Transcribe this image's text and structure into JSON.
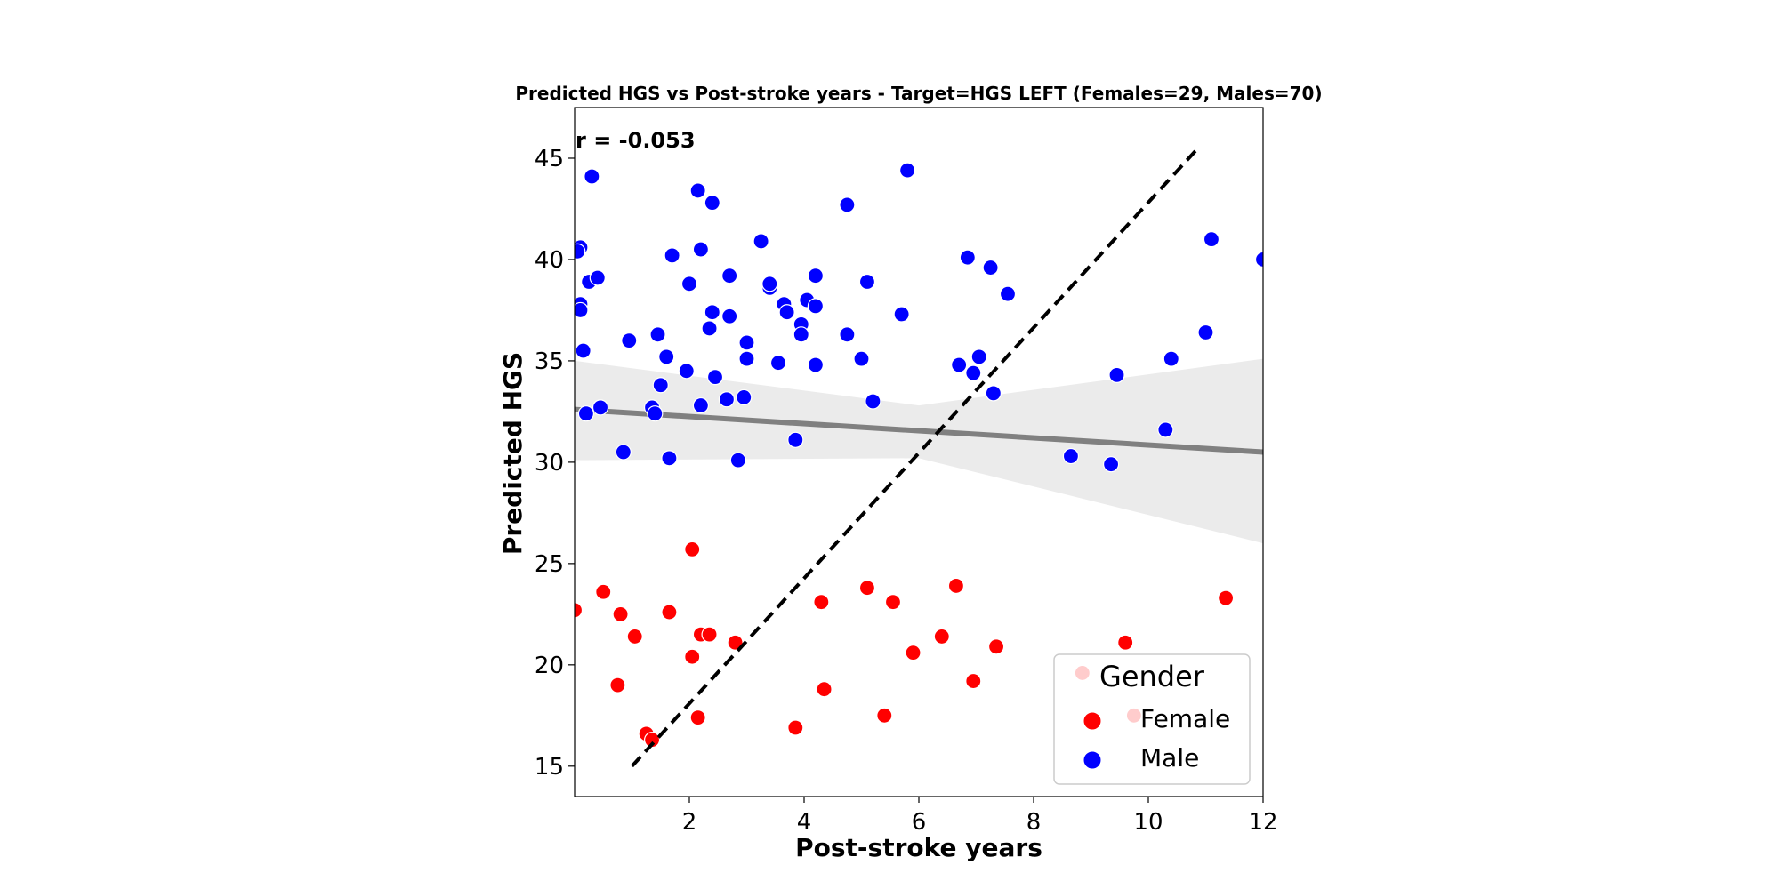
{
  "chart_data": {
    "type": "scatter",
    "title": "Predicted HGS vs Post-stroke years - Target=HGS LEFT (Females=29, Males=70)",
    "xlabel": "Post-stroke years",
    "ylabel": "Predicted HGS",
    "xlim": [
      0,
      12
    ],
    "ylim": [
      13.5,
      47.5
    ],
    "x_ticks": [
      2,
      4,
      6,
      8,
      10,
      12
    ],
    "y_ticks": [
      15,
      20,
      25,
      30,
      35,
      40,
      45
    ],
    "grid": false,
    "annotation": "r = -0.053",
    "legend": {
      "title": "Gender",
      "placement": "bottom-right",
      "entries": [
        "Female",
        "Male"
      ]
    },
    "colors": {
      "Female": "#ff0000",
      "Male": "#0000ff",
      "regression_line": "#808080",
      "confidence_band": "#ebebeb",
      "identity_line": "#000000"
    },
    "regression_line": {
      "x": [
        0,
        12
      ],
      "y": [
        32.6,
        30.5
      ]
    },
    "confidence_band": {
      "x": [
        0,
        6,
        12
      ],
      "upper": [
        35.0,
        32.8,
        35.1
      ],
      "lower": [
        30.1,
        30.2,
        26.0
      ]
    },
    "identity_line": {
      "x": [
        1.0,
        10.9
      ],
      "y": [
        15.0,
        45.6
      ]
    },
    "series": [
      {
        "name": "Female",
        "points": [
          [
            0.0,
            22.7
          ],
          [
            0.5,
            23.6
          ],
          [
            0.8,
            22.5
          ],
          [
            1.05,
            21.4
          ],
          [
            0.75,
            19.0
          ],
          [
            1.25,
            16.6
          ],
          [
            1.35,
            16.3
          ],
          [
            1.65,
            22.6
          ],
          [
            2.05,
            25.7
          ],
          [
            2.05,
            20.4
          ],
          [
            2.2,
            21.5
          ],
          [
            2.35,
            21.5
          ],
          [
            2.8,
            21.1
          ],
          [
            2.15,
            17.4
          ],
          [
            3.85,
            16.9
          ],
          [
            4.3,
            23.1
          ],
          [
            4.35,
            18.8
          ],
          [
            5.1,
            23.8
          ],
          [
            5.4,
            17.5
          ],
          [
            5.55,
            23.1
          ],
          [
            5.9,
            20.6
          ],
          [
            6.4,
            21.4
          ],
          [
            6.65,
            23.9
          ],
          [
            6.95,
            19.2
          ],
          [
            7.35,
            20.9
          ],
          [
            8.85,
            19.6
          ],
          [
            9.6,
            21.1
          ],
          [
            9.75,
            17.5
          ],
          [
            11.35,
            23.3
          ]
        ]
      },
      {
        "name": "Male",
        "points": [
          [
            0.1,
            40.6
          ],
          [
            0.05,
            40.4
          ],
          [
            0.1,
            37.8
          ],
          [
            0.1,
            37.5
          ],
          [
            0.15,
            35.5
          ],
          [
            0.25,
            38.9
          ],
          [
            0.4,
            39.1
          ],
          [
            0.3,
            44.1
          ],
          [
            0.2,
            32.4
          ],
          [
            0.45,
            32.7
          ],
          [
            0.85,
            30.5
          ],
          [
            0.95,
            36.0
          ],
          [
            1.35,
            32.7
          ],
          [
            1.4,
            32.4
          ],
          [
            1.45,
            36.3
          ],
          [
            1.5,
            33.8
          ],
          [
            1.6,
            35.2
          ],
          [
            1.65,
            30.2
          ],
          [
            1.7,
            40.2
          ],
          [
            1.95,
            34.5
          ],
          [
            2.0,
            38.8
          ],
          [
            2.15,
            43.4
          ],
          [
            2.2,
            40.5
          ],
          [
            2.2,
            32.8
          ],
          [
            2.35,
            36.6
          ],
          [
            2.4,
            37.4
          ],
          [
            2.4,
            42.8
          ],
          [
            2.45,
            34.2
          ],
          [
            2.65,
            33.1
          ],
          [
            2.7,
            37.2
          ],
          [
            2.7,
            39.2
          ],
          [
            2.85,
            30.1
          ],
          [
            2.95,
            33.2
          ],
          [
            3.0,
            35.9
          ],
          [
            3.0,
            35.1
          ],
          [
            3.25,
            40.9
          ],
          [
            3.4,
            38.6
          ],
          [
            3.4,
            38.8
          ],
          [
            3.55,
            34.9
          ],
          [
            3.65,
            37.8
          ],
          [
            3.7,
            37.4
          ],
          [
            3.85,
            31.1
          ],
          [
            3.95,
            36.8
          ],
          [
            3.95,
            36.3
          ],
          [
            4.05,
            38.0
          ],
          [
            4.2,
            34.8
          ],
          [
            4.2,
            37.7
          ],
          [
            4.2,
            39.2
          ],
          [
            4.75,
            36.3
          ],
          [
            4.75,
            42.7
          ],
          [
            5.0,
            35.1
          ],
          [
            5.1,
            38.9
          ],
          [
            5.2,
            33.0
          ],
          [
            5.7,
            37.3
          ],
          [
            5.8,
            44.4
          ],
          [
            6.7,
            34.8
          ],
          [
            6.85,
            40.1
          ],
          [
            6.95,
            34.4
          ],
          [
            7.05,
            35.2
          ],
          [
            7.25,
            39.6
          ],
          [
            7.3,
            33.4
          ],
          [
            7.55,
            38.3
          ],
          [
            8.65,
            30.3
          ],
          [
            9.35,
            29.9
          ],
          [
            9.45,
            34.3
          ],
          [
            10.3,
            31.6
          ],
          [
            10.4,
            35.1
          ],
          [
            11.0,
            36.4
          ],
          [
            11.1,
            41.0
          ],
          [
            12.0,
            40.0
          ]
        ]
      }
    ]
  }
}
